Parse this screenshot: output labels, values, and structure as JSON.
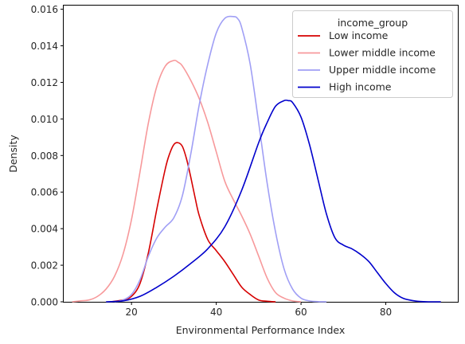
{
  "chart_data": {
    "type": "line",
    "xlabel": "Environmental Performance Index",
    "ylabel": "Density",
    "xlim": [
      4,
      97
    ],
    "ylim": [
      0,
      0.0162
    ],
    "xticks": [
      20,
      40,
      60,
      80
    ],
    "yticks": [
      0.0,
      0.002,
      0.004,
      0.006,
      0.008,
      0.01,
      0.012,
      0.014,
      0.016
    ],
    "ytick_labels": [
      "0.000",
      "0.002",
      "0.004",
      "0.006",
      "0.008",
      "0.010",
      "0.012",
      "0.014",
      "0.016"
    ],
    "grid": false,
    "legend": {
      "title": "income_group",
      "placement": "top-right"
    },
    "series": [
      {
        "name": "Low income",
        "color": "#d60000",
        "x": [
          15,
          18,
          20,
          22,
          24,
          26,
          28,
          29,
          30,
          31,
          32,
          33,
          34,
          35,
          36,
          38,
          40,
          42,
          44,
          46,
          48,
          50,
          52,
          54
        ],
        "y": [
          0.0,
          0.0001,
          0.0003,
          0.001,
          0.0027,
          0.0051,
          0.0073,
          0.0081,
          0.0086,
          0.0087,
          0.0085,
          0.0078,
          0.0068,
          0.0057,
          0.0047,
          0.0034,
          0.0028,
          0.0022,
          0.0015,
          0.0008,
          0.0004,
          0.0001,
          3e-05,
          0.0
        ]
      },
      {
        "name": "Lower middle income",
        "color": "#f7999b",
        "x": [
          6,
          8,
          10,
          12,
          14,
          16,
          18,
          20,
          22,
          24,
          26,
          28,
          30,
          31,
          32,
          34,
          36,
          38,
          40,
          42,
          44,
          46,
          48,
          50,
          52,
          54,
          56,
          58,
          60
        ],
        "y": [
          0.0,
          5e-05,
          0.0001,
          0.0003,
          0.0007,
          0.0014,
          0.0026,
          0.0045,
          0.0071,
          0.0098,
          0.0118,
          0.0129,
          0.0132,
          0.0131,
          0.0129,
          0.0121,
          0.0111,
          0.0098,
          0.0082,
          0.0066,
          0.0056,
          0.0047,
          0.0037,
          0.0025,
          0.0013,
          0.0005,
          0.0002,
          5e-05,
          0.0
        ]
      },
      {
        "name": "Upper middle income",
        "color": "#a09ff5",
        "x": [
          16,
          18,
          20,
          22,
          24,
          26,
          28,
          30,
          32,
          34,
          36,
          38,
          40,
          42,
          44,
          45,
          46,
          48,
          50,
          52,
          54,
          56,
          58,
          60,
          62,
          64,
          66
        ],
        "y": [
          0.0,
          0.0001,
          0.0004,
          0.0012,
          0.0025,
          0.0035,
          0.0041,
          0.0046,
          0.0058,
          0.0081,
          0.0108,
          0.013,
          0.0147,
          0.0155,
          0.0156,
          0.0155,
          0.015,
          0.013,
          0.0098,
          0.0065,
          0.0038,
          0.0018,
          0.0007,
          0.0002,
          5e-05,
          1e-05,
          0.0
        ]
      },
      {
        "name": "High income",
        "color": "#0000cc",
        "x": [
          14,
          18,
          22,
          26,
          30,
          34,
          38,
          42,
          46,
          50,
          52,
          54,
          56,
          57,
          58,
          60,
          62,
          64,
          66,
          68,
          70,
          72,
          74,
          76,
          78,
          80,
          82,
          84,
          86,
          88,
          90,
          93
        ],
        "y": [
          0.0,
          5e-05,
          0.0003,
          0.0008,
          0.0014,
          0.0021,
          0.0029,
          0.0041,
          0.0061,
          0.0087,
          0.0098,
          0.0107,
          0.011,
          0.011,
          0.0109,
          0.0101,
          0.0086,
          0.0067,
          0.0048,
          0.0035,
          0.0031,
          0.0029,
          0.0026,
          0.0022,
          0.0016,
          0.001,
          0.0005,
          0.0002,
          8e-05,
          2e-05,
          0.0,
          0.0
        ]
      }
    ]
  }
}
